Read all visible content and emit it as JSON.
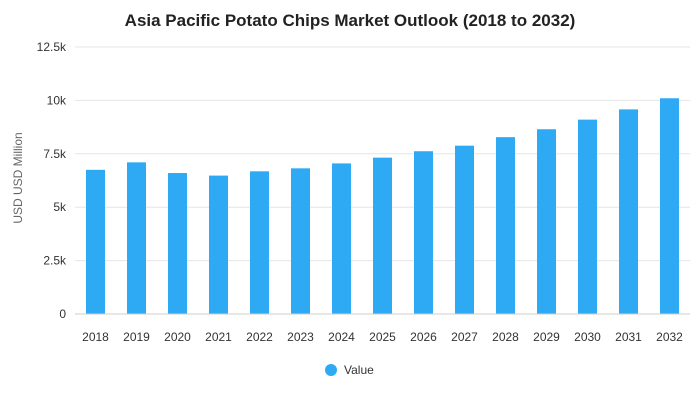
{
  "chart_data": {
    "type": "bar",
    "title": "Asia Pacific Potato Chips Market Outlook (2018 to 2032)",
    "ylabel": "USD USD Million",
    "xlabel": "",
    "categories": [
      "2018",
      "2019",
      "2020",
      "2021",
      "2022",
      "2023",
      "2024",
      "2025",
      "2026",
      "2027",
      "2028",
      "2029",
      "2030",
      "2031",
      "2032"
    ],
    "series": [
      {
        "name": "Value",
        "color": "#2eaaf5",
        "values": [
          6750,
          7100,
          6600,
          6480,
          6680,
          6820,
          7050,
          7320,
          7620,
          7880,
          8280,
          8650,
          9100,
          9580,
          10100
        ]
      }
    ],
    "ylim": [
      0,
      12500
    ],
    "yticks": [
      {
        "value": 0,
        "label": "0"
      },
      {
        "value": 2500,
        "label": "2.5k"
      },
      {
        "value": 5000,
        "label": "5k"
      },
      {
        "value": 7500,
        "label": "7.5k"
      },
      {
        "value": 10000,
        "label": "10k"
      },
      {
        "value": 12500,
        "label": "12.5k"
      }
    ],
    "grid": true,
    "legend": "bottom-center"
  }
}
